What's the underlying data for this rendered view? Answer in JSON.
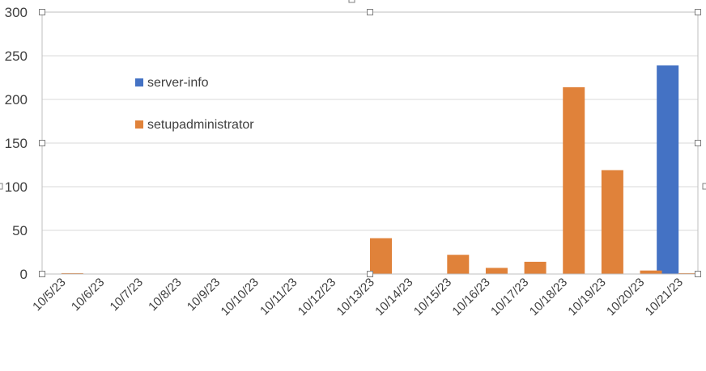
{
  "chart_data": {
    "type": "bar",
    "title": "",
    "xlabel": "",
    "ylabel": "",
    "ylim": [
      0,
      300
    ],
    "yticks": [
      0,
      50,
      100,
      150,
      200,
      250,
      300
    ],
    "grid": true,
    "legend_position": "upper-left-inside",
    "categories": [
      "10/5/23",
      "10/6/23",
      "10/7/23",
      "10/8/23",
      "10/9/23",
      "10/10/23",
      "10/11/23",
      "10/12/23",
      "10/13/23",
      "10/14/23",
      "10/15/23",
      "10/16/23",
      "10/17/23",
      "10/18/23",
      "10/19/23",
      "10/20/23",
      "10/21/23"
    ],
    "series": [
      {
        "name": "server-info",
        "color": "#4472C4",
        "values": [
          0,
          0,
          0,
          0,
          0,
          0,
          0,
          0,
          0,
          0,
          0,
          0,
          0,
          0,
          0,
          0,
          239
        ]
      },
      {
        "name": "setupadministrator",
        "color": "#E0823A",
        "values": [
          1,
          0,
          0,
          0,
          0,
          0,
          0,
          0,
          41,
          0,
          22,
          7,
          14,
          214,
          119,
          4,
          1
        ]
      }
    ],
    "gridline_color": "#d9d9d9",
    "axis_color": "#bfbfbf",
    "selection_handle_color": "#7f7f7f"
  }
}
